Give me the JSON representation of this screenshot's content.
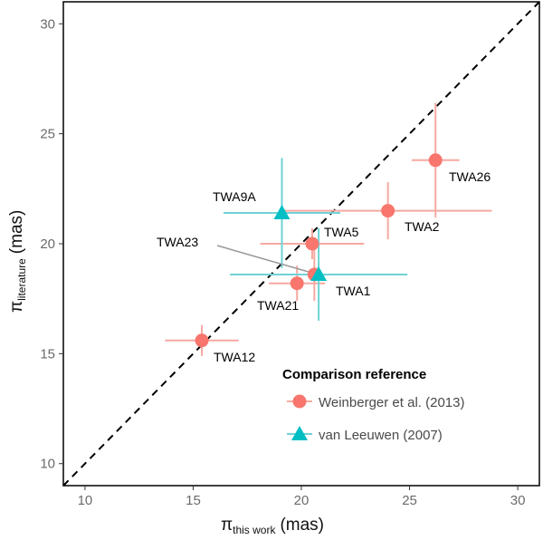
{
  "chart_data": {
    "type": "scatter",
    "title": "",
    "xlabel": {
      "main": "π",
      "sub": "this work",
      "unit": "(mas)"
    },
    "ylabel": {
      "main": "π",
      "sub": "literature",
      "unit": "(mas)"
    },
    "xlim": [
      9,
      31
    ],
    "ylim": [
      9,
      31
    ],
    "xticks": [
      10,
      15,
      20,
      25,
      30
    ],
    "yticks": [
      10,
      15,
      20,
      25,
      30
    ],
    "grid": false,
    "reference_line": {
      "type": "y=x",
      "style": "dashed"
    },
    "legend": {
      "title": "Comparison reference",
      "position": "bottom-right",
      "entries": [
        {
          "name": "Weinberger et al. (2013)",
          "marker": "circle",
          "color": "#F8766D"
        },
        {
          "name": "van Leeuwen (2007)",
          "marker": "triangle",
          "color": "#00BFC4"
        }
      ]
    },
    "series": [
      {
        "name": "Weinberger et al. (2013)",
        "marker": "circle",
        "color": "#F8766D",
        "errorbar_color": "#F6A9A1",
        "points": [
          {
            "label": "TWA26",
            "x": 26.2,
            "y": 23.8,
            "xerr": 1.1,
            "yerr": 2.6
          },
          {
            "label": "TWA2",
            "x": 24.0,
            "y": 21.5,
            "xerr": 4.8,
            "yerr": 1.3
          },
          {
            "label": "TWA5",
            "x": 20.5,
            "y": 20.0,
            "xerr": 2.4,
            "yerr": 0.7
          },
          {
            "label": "TWA21",
            "x": 19.8,
            "y": 18.2,
            "xerr": 1.3,
            "yerr": 0.8
          },
          {
            "label": "TWA23",
            "x": 20.6,
            "y": 18.6,
            "xerr": 1.6,
            "yerr": 1.2
          },
          {
            "label": "TWA12",
            "x": 15.4,
            "y": 15.6,
            "xerr": 1.7,
            "yerr": 0.7
          }
        ]
      },
      {
        "name": "van Leeuwen (2007)",
        "marker": "triangle",
        "color": "#00BFC4",
        "errorbar_color": "#6ED3D6",
        "points": [
          {
            "label": "TWA9A",
            "x": 19.1,
            "y": 21.4,
            "xerr": 2.7,
            "yerr": 2.5
          },
          {
            "label": "TWA1",
            "x": 20.8,
            "y": 18.6,
            "xerr": 4.1,
            "yerr": 2.1
          }
        ]
      }
    ],
    "point_label_text": {
      "TWA26": "TWA26",
      "TWA2": "TWA2",
      "TWA5": "TWA5",
      "TWA21": "TWA21",
      "TWA23": "TWA23",
      "TWA12": "TWA12",
      "TWA9A": "TWA9A",
      "TWA1": "TWA1"
    }
  }
}
